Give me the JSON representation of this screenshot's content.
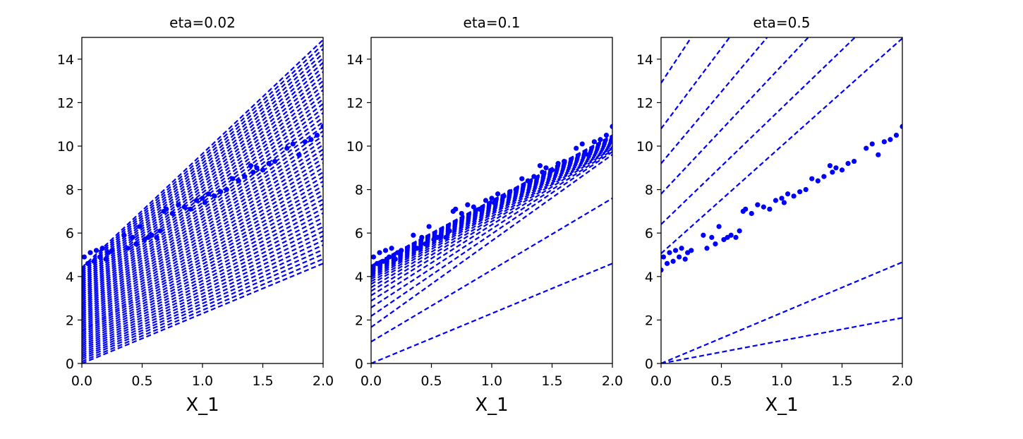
{
  "chart_data": [
    {
      "type": "scatter",
      "title": "eta=0.02",
      "xlabel": "X_1",
      "ylabel": "",
      "xlim": [
        0,
        2
      ],
      "ylim": [
        0,
        15
      ],
      "x_ticks": [
        "0.0",
        "0.5",
        "1.0",
        "1.5",
        "2.0"
      ],
      "y_ticks": [
        "0",
        "2",
        "4",
        "6",
        "8",
        "10",
        "12",
        "14"
      ],
      "grid": false,
      "series": [
        {
          "kind": "points",
          "style": "blue dots",
          "x": [
            0.0,
            0.02,
            0.05,
            0.07,
            0.1,
            0.12,
            0.15,
            0.17,
            0.2,
            0.22,
            0.25,
            0.35,
            0.38,
            0.42,
            0.45,
            0.48,
            0.52,
            0.55,
            0.58,
            0.62,
            0.65,
            0.68,
            0.7,
            0.75,
            0.8,
            0.85,
            0.9,
            0.95,
            1.0,
            1.02,
            1.05,
            1.1,
            1.15,
            1.2,
            1.25,
            1.3,
            1.35,
            1.4,
            1.42,
            1.45,
            1.5,
            1.55,
            1.6,
            1.7,
            1.75,
            1.8,
            1.85,
            1.9,
            1.95,
            2.0
          ],
          "y": [
            4.3,
            4.9,
            4.6,
            5.1,
            4.7,
            5.2,
            4.9,
            5.3,
            4.8,
            5.1,
            5.2,
            5.9,
            5.3,
            5.8,
            5.5,
            6.3,
            5.7,
            5.8,
            5.9,
            5.8,
            6.1,
            7.0,
            7.1,
            6.9,
            7.3,
            7.2,
            7.1,
            7.5,
            7.6,
            7.4,
            7.8,
            7.7,
            7.9,
            8.0,
            8.5,
            8.4,
            8.6,
            9.1,
            8.8,
            9.0,
            8.9,
            9.2,
            9.3,
            9.9,
            10.1,
            9.6,
            10.2,
            10.3,
            10.5,
            10.9
          ]
        },
        {
          "kind": "lines",
          "style": "blue dashed",
          "lines": [
            [
              0.0,
              2.3
            ],
            [
              0.09,
              2.36
            ],
            [
              0.19,
              2.42
            ],
            [
              0.28,
              2.48
            ],
            [
              0.37,
              2.54
            ],
            [
              0.46,
              2.6
            ],
            [
              0.55,
              2.66
            ],
            [
              0.64,
              2.72
            ],
            [
              0.73,
              2.78
            ],
            [
              0.82,
              2.84
            ],
            [
              0.91,
              2.9
            ],
            [
              1.0,
              2.96
            ],
            [
              1.09,
              3.02
            ],
            [
              1.18,
              3.08
            ],
            [
              1.27,
              3.14
            ],
            [
              1.36,
              3.2
            ],
            [
              1.45,
              3.26
            ],
            [
              1.53,
              3.32
            ],
            [
              1.62,
              3.38
            ],
            [
              1.71,
              3.44
            ],
            [
              1.8,
              3.5
            ],
            [
              1.89,
              3.56
            ],
            [
              1.98,
              3.62
            ],
            [
              2.07,
              3.68
            ],
            [
              2.16,
              3.74
            ],
            [
              2.25,
              3.8
            ],
            [
              2.34,
              3.86
            ],
            [
              2.43,
              3.92
            ],
            [
              2.52,
              3.98
            ],
            [
              2.61,
              4.04
            ],
            [
              2.7,
              4.1
            ],
            [
              2.79,
              4.16
            ],
            [
              2.88,
              4.22
            ],
            [
              2.97,
              4.28
            ],
            [
              3.06,
              4.34
            ],
            [
              3.15,
              4.4
            ],
            [
              3.24,
              4.46
            ],
            [
              3.33,
              4.52
            ],
            [
              3.42,
              4.58
            ],
            [
              3.51,
              4.64
            ],
            [
              3.6,
              4.7
            ],
            [
              3.69,
              4.76
            ],
            [
              3.78,
              4.82
            ],
            [
              3.87,
              4.88
            ],
            [
              3.96,
              4.94
            ],
            [
              4.05,
              5.0
            ],
            [
              4.14,
              5.06
            ],
            [
              4.23,
              5.12
            ],
            [
              4.32,
              5.18
            ],
            [
              4.41,
              5.24
            ]
          ]
        }
      ]
    },
    {
      "type": "scatter",
      "title": "eta=0.1",
      "xlabel": "X_1",
      "ylabel": "",
      "xlim": [
        0,
        2
      ],
      "ylim": [
        0,
        15
      ],
      "x_ticks": [
        "0.0",
        "0.5",
        "1.0",
        "1.5",
        "2.0"
      ],
      "y_ticks": [
        "0",
        "2",
        "4",
        "6",
        "8",
        "10",
        "12",
        "14"
      ],
      "grid": false,
      "series": [
        {
          "kind": "points",
          "style": "blue dots",
          "x": [
            0.0,
            0.02,
            0.05,
            0.07,
            0.1,
            0.12,
            0.15,
            0.17,
            0.2,
            0.22,
            0.25,
            0.35,
            0.38,
            0.42,
            0.45,
            0.48,
            0.52,
            0.55,
            0.58,
            0.62,
            0.65,
            0.68,
            0.7,
            0.75,
            0.8,
            0.85,
            0.9,
            0.95,
            1.0,
            1.02,
            1.05,
            1.1,
            1.15,
            1.2,
            1.25,
            1.3,
            1.35,
            1.4,
            1.42,
            1.45,
            1.5,
            1.55,
            1.6,
            1.7,
            1.75,
            1.8,
            1.85,
            1.9,
            1.95,
            2.0
          ],
          "y": [
            4.3,
            4.9,
            4.6,
            5.1,
            4.7,
            5.2,
            4.9,
            5.3,
            4.8,
            5.1,
            5.2,
            5.9,
            5.3,
            5.8,
            5.5,
            6.3,
            5.7,
            5.8,
            5.9,
            5.8,
            6.1,
            7.0,
            7.1,
            6.9,
            7.3,
            7.2,
            7.1,
            7.5,
            7.6,
            7.4,
            7.8,
            7.7,
            7.9,
            8.0,
            8.5,
            8.4,
            8.6,
            9.1,
            8.8,
            9.0,
            8.9,
            9.2,
            9.3,
            9.9,
            10.1,
            9.6,
            10.2,
            10.3,
            10.5,
            10.9
          ]
        },
        {
          "kind": "lines",
          "style": "blue dashed",
          "lines": [
            [
              0.0,
              2.3
            ],
            [
              1.0,
              3.3
            ],
            [
              1.67,
              3.97
            ],
            [
              2.18,
              3.78
            ],
            [
              2.57,
              3.62
            ],
            [
              2.88,
              3.5
            ],
            [
              3.13,
              3.4
            ],
            [
              3.33,
              3.32
            ],
            [
              3.5,
              3.26
            ],
            [
              3.65,
              3.21
            ],
            [
              3.77,
              3.17
            ],
            [
              3.88,
              3.14
            ],
            [
              3.97,
              3.11
            ],
            [
              4.05,
              3.09
            ],
            [
              4.12,
              3.07
            ],
            [
              4.18,
              3.06
            ],
            [
              4.23,
              3.05
            ],
            [
              4.27,
              3.04
            ],
            [
              4.31,
              3.03
            ],
            [
              4.35,
              3.02
            ],
            [
              4.38,
              3.01
            ],
            [
              4.4,
              3.0
            ],
            [
              4.42,
              3.0
            ],
            [
              4.44,
              3.0
            ],
            [
              4.45,
              3.0
            ],
            [
              4.46,
              3.0
            ],
            [
              4.47,
              3.0
            ],
            [
              4.48,
              3.0
            ],
            [
              4.49,
              3.0
            ],
            [
              4.5,
              3.0
            ]
          ]
        }
      ]
    },
    {
      "type": "scatter",
      "title": "eta=0.5",
      "xlabel": "X_1",
      "ylabel": "",
      "xlim": [
        0,
        2
      ],
      "ylim": [
        0,
        15
      ],
      "x_ticks": [
        "0.0",
        "0.5",
        "1.0",
        "1.5",
        "2.0"
      ],
      "y_ticks": [
        "0",
        "2",
        "4",
        "6",
        "8",
        "10",
        "12",
        "14"
      ],
      "grid": false,
      "series": [
        {
          "kind": "points",
          "style": "blue dots",
          "x": [
            0.0,
            0.02,
            0.05,
            0.07,
            0.1,
            0.12,
            0.15,
            0.17,
            0.2,
            0.22,
            0.25,
            0.35,
            0.38,
            0.42,
            0.45,
            0.48,
            0.52,
            0.55,
            0.58,
            0.62,
            0.65,
            0.68,
            0.7,
            0.75,
            0.8,
            0.85,
            0.9,
            0.95,
            1.0,
            1.02,
            1.05,
            1.1,
            1.15,
            1.2,
            1.25,
            1.3,
            1.35,
            1.4,
            1.42,
            1.45,
            1.5,
            1.55,
            1.6,
            1.7,
            1.75,
            1.8,
            1.85,
            1.9,
            1.95,
            2.0
          ],
          "y": [
            4.3,
            4.9,
            4.6,
            5.1,
            4.7,
            5.2,
            4.9,
            5.3,
            4.8,
            5.1,
            5.2,
            5.9,
            5.3,
            5.8,
            5.5,
            6.3,
            5.7,
            5.8,
            5.9,
            5.8,
            6.1,
            7.0,
            7.1,
            6.9,
            7.3,
            7.2,
            7.1,
            7.5,
            7.6,
            7.4,
            7.8,
            7.7,
            7.9,
            8.0,
            8.5,
            8.4,
            8.6,
            9.1,
            8.8,
            9.0,
            8.9,
            9.2,
            9.3,
            9.9,
            10.1,
            9.6,
            10.2,
            10.3,
            10.5,
            10.9
          ]
        },
        {
          "kind": "lines",
          "style": "blue dashed",
          "lines": [
            [
              0.0,
              1.05
            ],
            [
              0.0,
              2.33
            ],
            [
              5.06,
              4.95
            ],
            [
              6.4,
              5.35
            ],
            [
              7.8,
              5.9
            ],
            [
              9.2,
              6.6
            ],
            [
              10.8,
              7.4
            ],
            [
              12.9,
              8.4
            ]
          ]
        }
      ]
    }
  ],
  "colors": {
    "series": "#0000ff",
    "axes": "#000000",
    "background": "#ffffff"
  }
}
